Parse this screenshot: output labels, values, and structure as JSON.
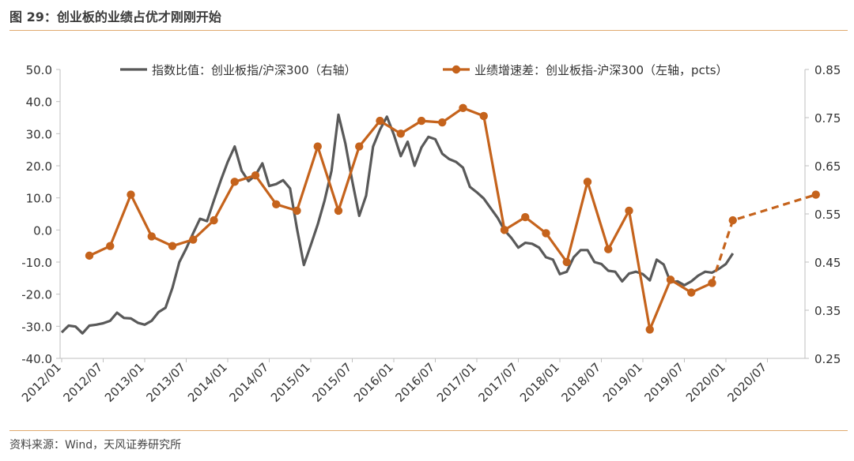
{
  "header": {
    "title": "图 29：创业板的业绩占优才刚刚开始"
  },
  "footer": {
    "source": "资料来源：Wind，天风证券研究所"
  },
  "chart_data": {
    "type": "line",
    "title": "",
    "x_ticks": [
      "2012/01",
      "2012/07",
      "2013/01",
      "2013/07",
      "2014/01",
      "2014/07",
      "2015/01",
      "2015/07",
      "2016/01",
      "2016/07",
      "2017/01",
      "2017/07",
      "2018/01",
      "2018/07",
      "2019/01",
      "2019/07",
      "2020/01",
      "2020/07"
    ],
    "y_left": {
      "ticks": [
        "50.0",
        "40.0",
        "30.0",
        "20.0",
        "10.0",
        "0.0",
        "-10.0",
        "-20.0",
        "-30.0",
        "-40.0"
      ],
      "range": [
        -40,
        50
      ]
    },
    "y_right": {
      "ticks": [
        "0.85",
        "0.75",
        "0.65",
        "0.55",
        "0.45",
        "0.35",
        "0.25"
      ],
      "range": [
        0.25,
        0.85
      ]
    },
    "legend_position": "top",
    "series": [
      {
        "name": "指数比值：创业板指/沪深300（右轴）",
        "axis": "right",
        "color": "#595959",
        "style": "solid",
        "points": [
          [
            "2012/01",
            0.304
          ],
          [
            "2012/02",
            0.318
          ],
          [
            "2012/03",
            0.316
          ],
          [
            "2012/04",
            0.302
          ],
          [
            "2012/05",
            0.318
          ],
          [
            "2012/06",
            0.32
          ],
          [
            "2012/07",
            0.323
          ],
          [
            "2012/08",
            0.328
          ],
          [
            "2012/09",
            0.345
          ],
          [
            "2012/10",
            0.334
          ],
          [
            "2012/11",
            0.333
          ],
          [
            "2012/12",
            0.324
          ],
          [
            "2013/01",
            0.32
          ],
          [
            "2013/02",
            0.328
          ],
          [
            "2013/03",
            0.346
          ],
          [
            "2013/04",
            0.355
          ],
          [
            "2013/05",
            0.396
          ],
          [
            "2013/06",
            0.45
          ],
          [
            "2013/07",
            0.478
          ],
          [
            "2013/08",
            0.51
          ],
          [
            "2013/09",
            0.54
          ],
          [
            "2013/10",
            0.535
          ],
          [
            "2013/11",
            0.578
          ],
          [
            "2013/12",
            0.62
          ],
          [
            "2014/01",
            0.658
          ],
          [
            "2014/02",
            0.69
          ],
          [
            "2014/03",
            0.64
          ],
          [
            "2014/04",
            0.618
          ],
          [
            "2014/05",
            0.63
          ],
          [
            "2014/06",
            0.655
          ],
          [
            "2014/07",
            0.608
          ],
          [
            "2014/08",
            0.612
          ],
          [
            "2014/09",
            0.62
          ],
          [
            "2014/10",
            0.603
          ],
          [
            "2014/11",
            0.52
          ],
          [
            "2014/12",
            0.444
          ],
          [
            "2015/01",
            0.485
          ],
          [
            "2015/02",
            0.528
          ],
          [
            "2015/03",
            0.578
          ],
          [
            "2015/04",
            0.64
          ],
          [
            "2015/05",
            0.756
          ],
          [
            "2015/06",
            0.696
          ],
          [
            "2015/07",
            0.618
          ],
          [
            "2015/08",
            0.546
          ],
          [
            "2015/09",
            0.588
          ],
          [
            "2015/10",
            0.69
          ],
          [
            "2015/11",
            0.725
          ],
          [
            "2015/12",
            0.752
          ],
          [
            "2016/01",
            0.715
          ],
          [
            "2016/02",
            0.67
          ],
          [
            "2016/03",
            0.7
          ],
          [
            "2016/04",
            0.65
          ],
          [
            "2016/05",
            0.688
          ],
          [
            "2016/06",
            0.71
          ],
          [
            "2016/07",
            0.705
          ],
          [
            "2016/08",
            0.675
          ],
          [
            "2016/09",
            0.664
          ],
          [
            "2016/10",
            0.658
          ],
          [
            "2016/11",
            0.646
          ],
          [
            "2016/12",
            0.606
          ],
          [
            "2017/01",
            0.595
          ],
          [
            "2017/02",
            0.582
          ],
          [
            "2017/03",
            0.562
          ],
          [
            "2017/04",
            0.542
          ],
          [
            "2017/05",
            0.516
          ],
          [
            "2017/06",
            0.5
          ],
          [
            "2017/07",
            0.48
          ],
          [
            "2017/08",
            0.49
          ],
          [
            "2017/09",
            0.488
          ],
          [
            "2017/10",
            0.48
          ],
          [
            "2017/11",
            0.46
          ],
          [
            "2017/12",
            0.455
          ],
          [
            "2018/01",
            0.425
          ],
          [
            "2018/02",
            0.43
          ],
          [
            "2018/03",
            0.46
          ],
          [
            "2018/04",
            0.475
          ],
          [
            "2018/05",
            0.475
          ],
          [
            "2018/06",
            0.45
          ],
          [
            "2018/07",
            0.446
          ],
          [
            "2018/08",
            0.432
          ],
          [
            "2018/09",
            0.43
          ],
          [
            "2018/10",
            0.41
          ],
          [
            "2018/11",
            0.426
          ],
          [
            "2018/12",
            0.43
          ],
          [
            "2019/01",
            0.425
          ],
          [
            "2019/02",
            0.412
          ],
          [
            "2019/03",
            0.455
          ],
          [
            "2019/04",
            0.445
          ],
          [
            "2019/05",
            0.408
          ],
          [
            "2019/06",
            0.41
          ],
          [
            "2019/07",
            0.402
          ],
          [
            "2019/08",
            0.41
          ],
          [
            "2019/09",
            0.422
          ],
          [
            "2019/10",
            0.43
          ],
          [
            "2019/11",
            0.428
          ],
          [
            "2019/12",
            0.436
          ],
          [
            "2020/01",
            0.446
          ],
          [
            "2020/02",
            0.468
          ]
        ]
      },
      {
        "name": "业绩增速差：创业板指-沪深300（左轴，pcts）",
        "axis": "left",
        "color": "#c5631c",
        "style": "solid-then-dashed",
        "points": [
          [
            "2012/05",
            -8.0
          ],
          [
            "2012/08",
            -5.0
          ],
          [
            "2012/11",
            11.0
          ],
          [
            "2013/02",
            -2.0
          ],
          [
            "2013/05",
            -5.0
          ],
          [
            "2013/08",
            -3.0
          ],
          [
            "2013/11",
            3.0
          ],
          [
            "2014/02",
            15.0
          ],
          [
            "2014/05",
            17.0
          ],
          [
            "2014/08",
            8.0
          ],
          [
            "2014/11",
            6.0
          ],
          [
            "2015/02",
            26.0
          ],
          [
            "2015/05",
            6.0
          ],
          [
            "2015/08",
            26.0
          ],
          [
            "2015/11",
            34.0
          ],
          [
            "2016/02",
            30.0
          ],
          [
            "2016/05",
            34.0
          ],
          [
            "2016/08",
            33.5
          ],
          [
            "2016/11",
            38.0
          ],
          [
            "2017/02",
            35.5
          ],
          [
            "2017/05",
            0.0
          ],
          [
            "2017/08",
            4.0
          ],
          [
            "2017/11",
            -1.0
          ],
          [
            "2018/02",
            -10.0
          ],
          [
            "2018/05",
            15.0
          ],
          [
            "2018/08",
            -6.0
          ],
          [
            "2018/11",
            6.0
          ],
          [
            "2019/02",
            -31.0
          ],
          [
            "2019/05",
            -15.5
          ],
          [
            "2019/08",
            -19.5
          ],
          [
            "2019/11",
            -16.5
          ],
          [
            "2020/02",
            3.0
          ],
          [
            "2020/05",
            5.0
          ],
          [
            "2020/08",
            7.0
          ],
          [
            "2020/11",
            9.0
          ],
          [
            "2021/02",
            11.0
          ]
        ],
        "dashed_from": "2019/11"
      }
    ]
  }
}
